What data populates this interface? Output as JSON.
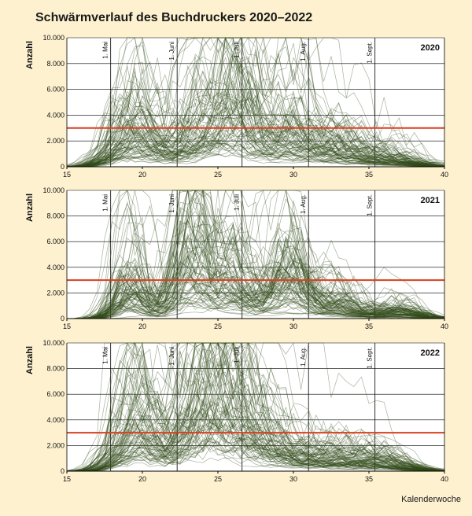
{
  "figure": {
    "title": "Schwärmverlauf des Buchdruckers 2020–2022",
    "xlabel": "Kalenderwoche"
  },
  "colors": {
    "background": "#fdf1cf",
    "plot_background": "#ffffff",
    "series_line": "#2f4a17",
    "threshold_line": "#d8401f",
    "grid": "#000000"
  },
  "chart_data": [
    {
      "type": "line",
      "title": "2020",
      "ylabel": "Anzahl",
      "xlabel": "",
      "xlim": [
        15,
        40
      ],
      "ylim": [
        0,
        10000
      ],
      "x_ticks": [
        "15",
        "20",
        "25",
        "30",
        "35",
        "40"
      ],
      "y_ticks": [
        "0",
        "2.000",
        "4.000",
        "6.000",
        "8.000",
        "10.000"
      ],
      "threshold": 3000,
      "month_markers": [
        {
          "label": "1. Mai",
          "x": 17.9
        },
        {
          "label": "1. Juni",
          "x": 22.3
        },
        {
          "label": "1. Juli",
          "x": 26.6
        },
        {
          "label": "1. Aug.",
          "x": 31.0
        },
        {
          "label": "1. Sept.",
          "x": 35.4
        }
      ],
      "peaks": [
        {
          "week": 19.5,
          "mean": 2600,
          "width": 1.3
        },
        {
          "week": 23.8,
          "mean": 2400,
          "width": 1.4
        },
        {
          "week": 26.2,
          "mean": 3300,
          "width": 1.1
        },
        {
          "week": 29.5,
          "mean": 2200,
          "width": 1.6
        },
        {
          "week": 33.0,
          "mean": 1100,
          "width": 1.5
        },
        {
          "week": 36.5,
          "mean": 500,
          "width": 1.5
        }
      ]
    },
    {
      "type": "line",
      "title": "2021",
      "ylabel": "Anzahl",
      "xlabel": "",
      "xlim": [
        15,
        40
      ],
      "ylim": [
        0,
        10000
      ],
      "x_ticks": [
        "15",
        "20",
        "25",
        "30",
        "35",
        "40"
      ],
      "y_ticks": [
        "0",
        "2.000",
        "4.000",
        "6.000",
        "8.000",
        "10.000"
      ],
      "threshold": 3000,
      "month_markers": [
        {
          "label": "1. Mai",
          "x": 17.9
        },
        {
          "label": "1. Juni",
          "x": 22.3
        },
        {
          "label": "1. Juli",
          "x": 26.6
        },
        {
          "label": "1. Aug.",
          "x": 31.0
        },
        {
          "label": "1. Sept.",
          "x": 35.4
        }
      ],
      "peaks": [
        {
          "week": 19.3,
          "mean": 2300,
          "width": 0.9
        },
        {
          "week": 23.2,
          "mean": 4300,
          "width": 1.0
        },
        {
          "week": 26.0,
          "mean": 2600,
          "width": 1.2
        },
        {
          "week": 29.8,
          "mean": 3200,
          "width": 1.1
        },
        {
          "week": 33.0,
          "mean": 900,
          "width": 1.2
        },
        {
          "week": 37.0,
          "mean": 500,
          "width": 1.3
        }
      ]
    },
    {
      "type": "line",
      "title": "2022",
      "ylabel": "Anzahl",
      "xlabel": "",
      "xlim": [
        15,
        40
      ],
      "ylim": [
        0,
        10000
      ],
      "x_ticks": [
        "15",
        "20",
        "25",
        "30",
        "35",
        "40"
      ],
      "y_ticks": [
        "0",
        "2.000",
        "4.000",
        "6.000",
        "8.000",
        "10.000"
      ],
      "threshold": 3000,
      "month_markers": [
        {
          "label": "1. Mai",
          "x": 17.9
        },
        {
          "label": "1. Juni",
          "x": 22.3
        },
        {
          "label": "1. Juli",
          "x": 26.6
        },
        {
          "label": "1. Aug.",
          "x": 31.0
        },
        {
          "label": "1. Sept.",
          "x": 35.4
        }
      ],
      "peaks": [
        {
          "week": 19.8,
          "mean": 3100,
          "width": 1.2
        },
        {
          "week": 23.8,
          "mean": 4100,
          "width": 1.2
        },
        {
          "week": 26.0,
          "mean": 3400,
          "width": 1.3
        },
        {
          "week": 28.5,
          "mean": 1500,
          "width": 1.6
        },
        {
          "week": 32.5,
          "mean": 900,
          "width": 1.8
        },
        {
          "week": 36.0,
          "mean": 600,
          "width": 1.6
        }
      ]
    }
  ]
}
